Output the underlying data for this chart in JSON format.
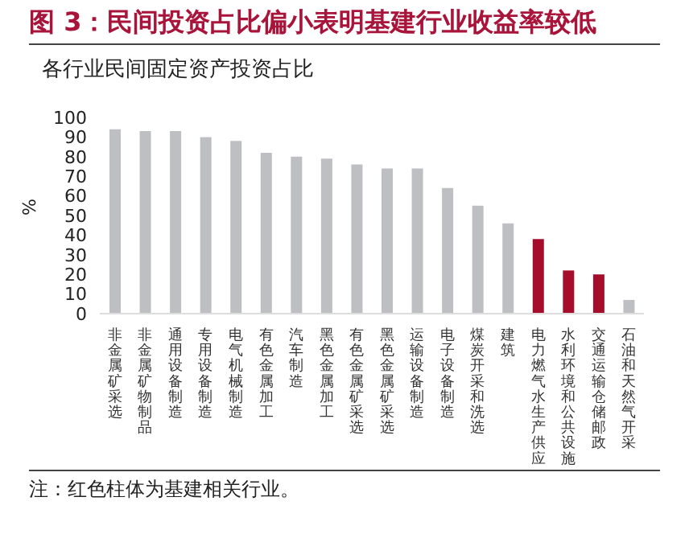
{
  "chart_data": {
    "type": "bar",
    "title": "图 3：民间投资占比偏小表明基建行业收益率较低",
    "subtitle": "各行业民间固定资产投资占比",
    "ylabel": "%",
    "categories": [
      "非金属矿采选",
      "非金属矿物制品",
      "通用设备制造",
      "专用设备制造",
      "电气机械制造",
      "有色金属加工",
      "汽车制造",
      "黑色金属加工",
      "有色金属矿采选",
      "黑色金属矿采选",
      "运输设备制造",
      "电子设备制造",
      "煤炭开采和洗选",
      "建筑",
      "电力燃气水生产供应",
      "水利环境和公共设施",
      "交通运输仓储邮政",
      "石油和天然气开采"
    ],
    "values": [
      94,
      93,
      93,
      90,
      88,
      82,
      80,
      79,
      76,
      74,
      74,
      64,
      55,
      46,
      38,
      22,
      20,
      7
    ],
    "colors": [
      "#bebfc3",
      "#bebfc3",
      "#bebfc3",
      "#bebfc3",
      "#bebfc3",
      "#bebfc3",
      "#bebfc3",
      "#bebfc3",
      "#bebfc3",
      "#bebfc3",
      "#bebfc3",
      "#bebfc3",
      "#bebfc3",
      "#bebfc3",
      "#a50d2a",
      "#a50d2a",
      "#a50d2a",
      "#bebfc3"
    ],
    "ylim": [
      0,
      100
    ],
    "yticks": [
      0,
      10,
      20,
      30,
      40,
      50,
      60,
      70,
      80,
      90,
      100
    ],
    "grid": false,
    "annotations": [
      "注：红色柱体为基建相关行业。"
    ]
  }
}
